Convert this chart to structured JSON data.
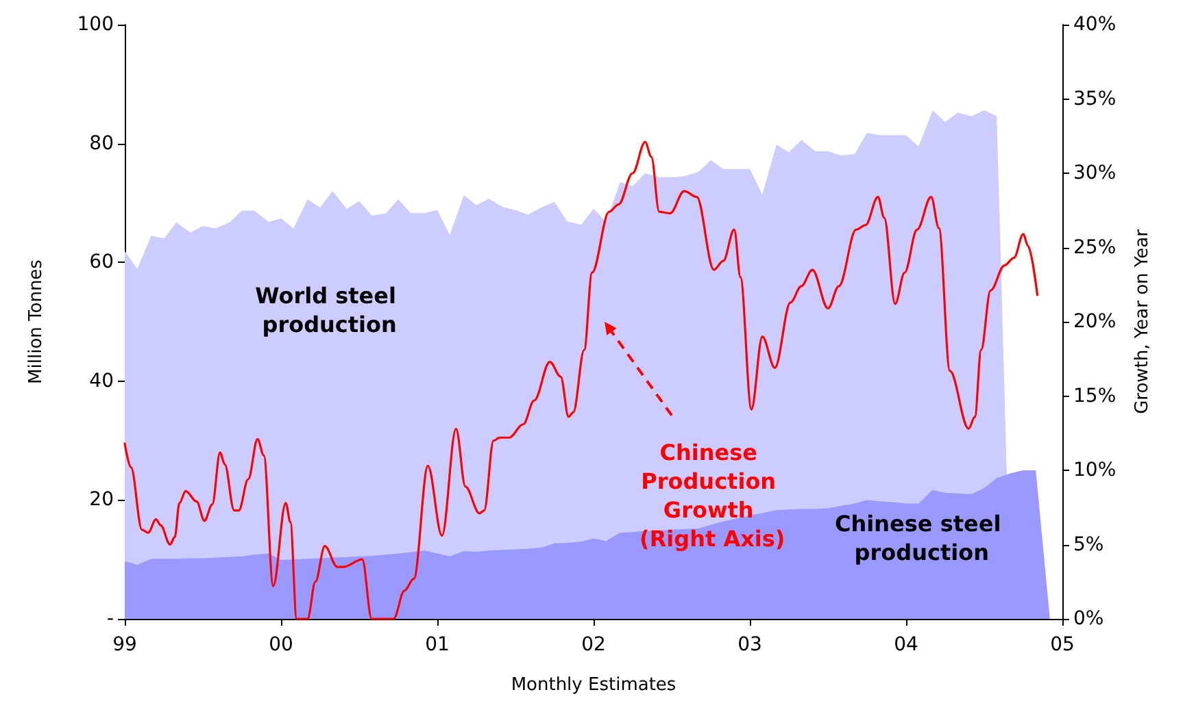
{
  "chart_data": {
    "type": "area",
    "xlabel": "Monthly Estimates",
    "ylabel": "Million Tonnes",
    "y2label": "Growth, Year on Year",
    "x": [
      1999,
      1999.08,
      1999.17,
      1999.25,
      1999.33,
      1999.42,
      1999.5,
      1999.58,
      1999.67,
      1999.75,
      1999.83,
      1999.92,
      2000,
      2000.08,
      2000.17,
      2000.25,
      2000.33,
      2000.42,
      2000.5,
      2000.58,
      2000.67,
      2000.75,
      2000.83,
      2000.92,
      2001,
      2001.08,
      2001.17,
      2001.25,
      2001.33,
      2001.42,
      2001.5,
      2001.58,
      2001.67,
      2001.75,
      2001.83,
      2001.92,
      2002,
      2002.08,
      2002.17,
      2002.25,
      2002.33,
      2002.42,
      2002.5,
      2002.58,
      2002.67,
      2002.75,
      2002.83,
      2002.92,
      2003,
      2003.08,
      2003.17,
      2003.25,
      2003.33,
      2003.42,
      2003.5,
      2003.58,
      2003.67,
      2003.75,
      2003.83,
      2003.92,
      2004,
      2004.08,
      2004.17,
      2004.25,
      2004.33,
      2004.42,
      2004.5,
      2004.58,
      2004.67,
      2004.75,
      2004.83,
      2004.92
    ],
    "series": [
      {
        "name": "World steel production",
        "color": "#ccccff",
        "values": [
          61.9,
          58.9,
          64.5,
          64,
          66.7,
          65,
          66.1,
          65.7,
          66.7,
          68.7,
          68.7,
          66.8,
          67.4,
          65.7,
          70.6,
          69.2,
          72,
          69,
          70.3,
          67.9,
          68.2,
          70.6,
          68.3,
          68.3,
          68.8,
          64.6,
          71.3,
          69.6,
          70.7,
          69.3,
          68.8,
          68,
          69.3,
          70.2,
          66.9,
          66.3,
          69,
          66.8,
          73.5,
          72.8,
          75,
          74.3,
          74.3,
          74.5,
          75.2,
          77.2,
          75.7,
          75.7,
          75.7,
          71.4,
          79.8,
          78.5,
          80.6,
          78.7,
          78.7,
          78,
          78.2,
          81.8,
          81.4,
          81.4,
          81.4,
          79.5,
          85.6,
          83.6,
          85.2,
          84.6,
          85.6,
          84.6,
          0,
          null,
          null,
          null
        ]
      },
      {
        "name": "Chinese steel production",
        "color": "#9999ff",
        "values": [
          9.7,
          9.1,
          10.1,
          10.1,
          10.1,
          10.2,
          10.2,
          10.3,
          10.4,
          10.5,
          10.8,
          11,
          9.9,
          10,
          10.1,
          10.2,
          10.3,
          10.4,
          10.5,
          10.6,
          10.8,
          11,
          11.2,
          11.5,
          11,
          10.5,
          11.4,
          11.3,
          11.5,
          11.6,
          11.7,
          11.8,
          12,
          12.7,
          12.8,
          13,
          13.5,
          13.1,
          14.5,
          14.6,
          14.8,
          14.9,
          15,
          15.1,
          15.2,
          15.8,
          16.4,
          16.9,
          17.4,
          17.8,
          18.3,
          18.4,
          18.5,
          18.5,
          18.6,
          19,
          19.4,
          20,
          19.8,
          19.6,
          19.4,
          19.4,
          21.7,
          21.2,
          21.1,
          21,
          22,
          23.7,
          24.5,
          25,
          25,
          0
        ]
      },
      {
        "name": "Chinese Production Growth (Right Axis)",
        "type": "line",
        "axis": "y2",
        "color": "#ff0000",
        "x": [
          1999,
          1999.04,
          1999.11,
          1999.15,
          1999.2,
          1999.23,
          1999.29,
          1999.32,
          1999.35,
          1999.39,
          1999.46,
          1999.51,
          1999.56,
          1999.61,
          1999.64,
          1999.7,
          1999.73,
          1999.79,
          1999.85,
          1999.89,
          1999.95,
          2000.03,
          2000.06,
          2000.1,
          2000.17,
          2000.22,
          2000.28,
          2000.36,
          2000.4,
          2000.52,
          2000.58,
          2000.72,
          2000.79,
          2000.85,
          2000.94,
          2001.03,
          2001.12,
          2001.18,
          2001.27,
          2001.3,
          2001.36,
          2001.4,
          2001.46,
          2001.55,
          2001.62,
          2001.72,
          2001.79,
          2001.84,
          2001.87,
          2001.94,
          2001.99,
          2002.1,
          2002.16,
          2002.25,
          2002.33,
          2002.37,
          2002.42,
          2002.49,
          2002.58,
          2002.66,
          2002.77,
          2002.83,
          2002.9,
          2002.94,
          2003.01,
          2003.08,
          2003.16,
          2003.26,
          2003.33,
          2003.4,
          2003.5,
          2003.57,
          2003.68,
          2003.74,
          2003.82,
          2003.86,
          2003.93,
          2003.99,
          2004.07,
          2004.16,
          2004.21,
          2004.28,
          2004.4,
          2004.44,
          2004.48,
          2004.54,
          2004.63,
          2004.69,
          2004.75,
          2004.78,
          2004.84
        ],
        "values": [
          11.8,
          10.2,
          6,
          5.8,
          6.7,
          6.3,
          5,
          5.5,
          7.8,
          8.6,
          7.9,
          6.6,
          7.7,
          11.2,
          10.4,
          7.3,
          7.3,
          9.4,
          12.1,
          11,
          2.2,
          7.8,
          6.5,
          0,
          0,
          2.5,
          4.9,
          3.5,
          3.5,
          4,
          0,
          0,
          1.9,
          2.7,
          10.3,
          5.6,
          12.8,
          8.9,
          7.1,
          7.3,
          12,
          12.2,
          12.2,
          13.1,
          14.7,
          17.3,
          16.3,
          13.6,
          13.9,
          18.1,
          23.3,
          27.4,
          27.9,
          30,
          32.1,
          31.1,
          27.4,
          27.3,
          28.8,
          28.4,
          23.5,
          24.1,
          26.2,
          23,
          14.1,
          19,
          16.9,
          21.3,
          22.4,
          23.5,
          20.9,
          22.4,
          26.2,
          26.5,
          28.4,
          27,
          21.2,
          23.3,
          26.2,
          28.4,
          26.3,
          16.7,
          12.8,
          13.6,
          18.1,
          22.1,
          23.8,
          24.3,
          25.9,
          25.1,
          21.8
        ]
      }
    ],
    "xlim": [
      1999,
      2005
    ],
    "xticks": [
      {
        "value": 1999,
        "label": "99"
      },
      {
        "value": 2000,
        "label": "00"
      },
      {
        "value": 2001,
        "label": "01"
      },
      {
        "value": 2002,
        "label": "02"
      },
      {
        "value": 2003,
        "label": "03"
      },
      {
        "value": 2004,
        "label": "04"
      },
      {
        "value": 2005,
        "label": "05"
      }
    ],
    "ylim": [
      0,
      100
    ],
    "yticks": [
      {
        "value": 0,
        "label": "-"
      },
      20,
      40,
      60,
      80,
      100
    ],
    "y2lim": [
      0,
      40
    ],
    "y2ticks": [
      {
        "value": 0,
        "label": "0%"
      },
      {
        "value": 5,
        "label": "5%"
      },
      {
        "value": 10,
        "label": "10%"
      },
      {
        "value": 15,
        "label": "15%"
      },
      {
        "value": 20,
        "label": "20%"
      },
      {
        "value": 25,
        "label": "25%"
      },
      {
        "value": 30,
        "label": "30%"
      },
      {
        "value": 35,
        "label": "35%"
      },
      {
        "value": 40,
        "label": "40%"
      }
    ],
    "grid": false,
    "legend": false,
    "marker": "none",
    "line_style": "solid"
  }
}
